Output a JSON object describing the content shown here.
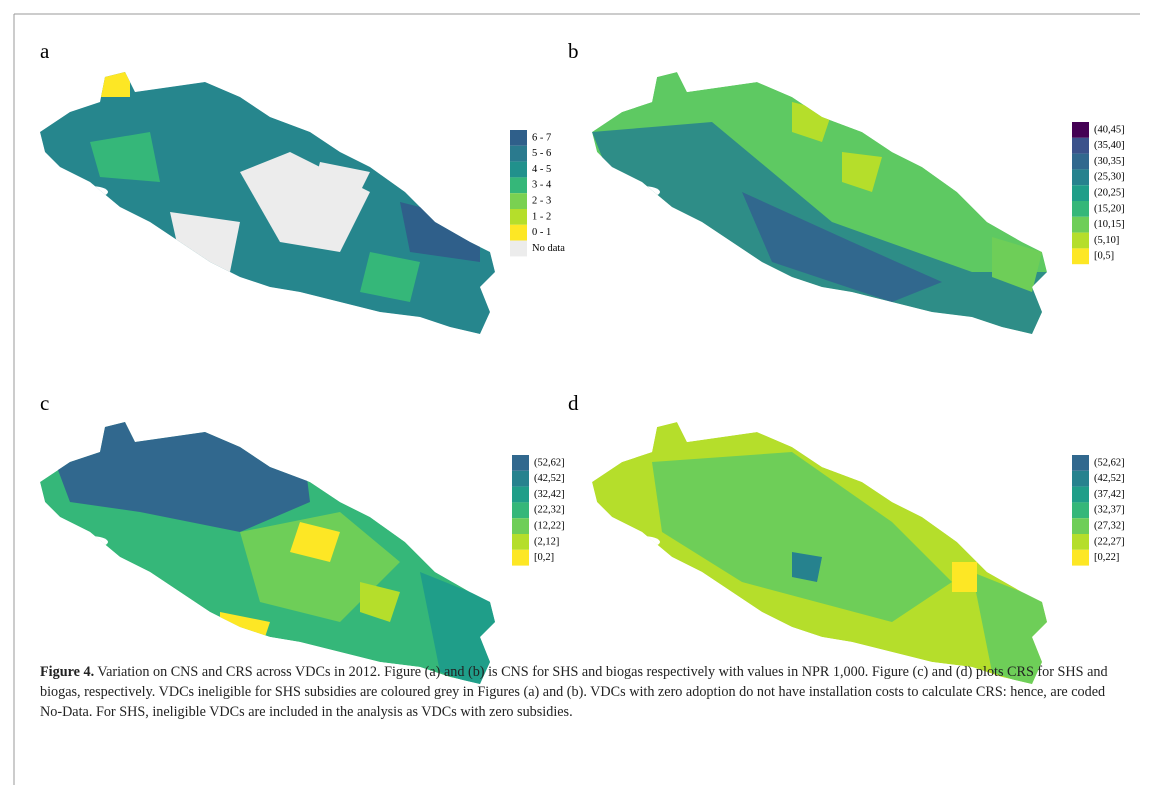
{
  "panels": [
    {
      "label": "a",
      "legend": [
        {
          "label": "6 - 7",
          "color": "#2f5f8a"
        },
        {
          "label": "5 - 6",
          "color": "#2a7a8e"
        },
        {
          "label": "4 - 5",
          "color": "#21918c"
        },
        {
          "label": "3 - 4",
          "color": "#35b779"
        },
        {
          "label": "2 - 3",
          "color": "#7ad151"
        },
        {
          "label": "1 - 2",
          "color": "#b5de2b"
        },
        {
          "label": "0 - 1",
          "color": "#fde725"
        },
        {
          "label": "No data",
          "color": "#ececec"
        }
      ]
    },
    {
      "label": "b",
      "legend": [
        {
          "label": "(40,45]",
          "color": "#440154"
        },
        {
          "label": "(35,40]",
          "color": "#3b528b"
        },
        {
          "label": "(30,35]",
          "color": "#31688e"
        },
        {
          "label": "(25,30]",
          "color": "#26828e"
        },
        {
          "label": "(20,25]",
          "color": "#1f9e89"
        },
        {
          "label": "(15,20]",
          "color": "#35b779"
        },
        {
          "label": "(10,15]",
          "color": "#6ece58"
        },
        {
          "label": "(5,10]",
          "color": "#b5de2b"
        },
        {
          "label": "[0,5]",
          "color": "#fde725"
        }
      ]
    },
    {
      "label": "c",
      "legend": [
        {
          "label": "(52,62]",
          "color": "#31688e"
        },
        {
          "label": "(42,52]",
          "color": "#26828e"
        },
        {
          "label": "(32,42]",
          "color": "#1f9e89"
        },
        {
          "label": "(22,32]",
          "color": "#35b779"
        },
        {
          "label": "(12,22]",
          "color": "#6ece58"
        },
        {
          "label": "(2,12]",
          "color": "#b5de2b"
        },
        {
          "label": "[0,2]",
          "color": "#fde725"
        }
      ]
    },
    {
      "label": "d",
      "legend": [
        {
          "label": "(52,62]",
          "color": "#31688e"
        },
        {
          "label": "(42,52]",
          "color": "#26828e"
        },
        {
          "label": "(37,42]",
          "color": "#1f9e89"
        },
        {
          "label": "(32,37]",
          "color": "#35b779"
        },
        {
          "label": "(27,32]",
          "color": "#6ece58"
        },
        {
          "label": "(22,27]",
          "color": "#b5de2b"
        },
        {
          "label": "[0,22]",
          "color": "#fde725"
        }
      ]
    }
  ],
  "caption": {
    "title": "Figure 4.",
    "text": "Variation on CNS and CRS across VDCs in 2012. Figure (a) and (b) is CNS for SHS and biogas respectively with values in NPR 1,000. Figure (c) and (d) plots CRS for SHS and biogas, respectively. VDCs ineligible for SHS subsidies are coloured grey in Figures (a) and (b). VDCs with zero adoption do not have installation costs to calculate CRS: hence, are coded No-Data. For SHS, ineligible VDCs are included in the analysis as VDCs with zero subsidies."
  }
}
